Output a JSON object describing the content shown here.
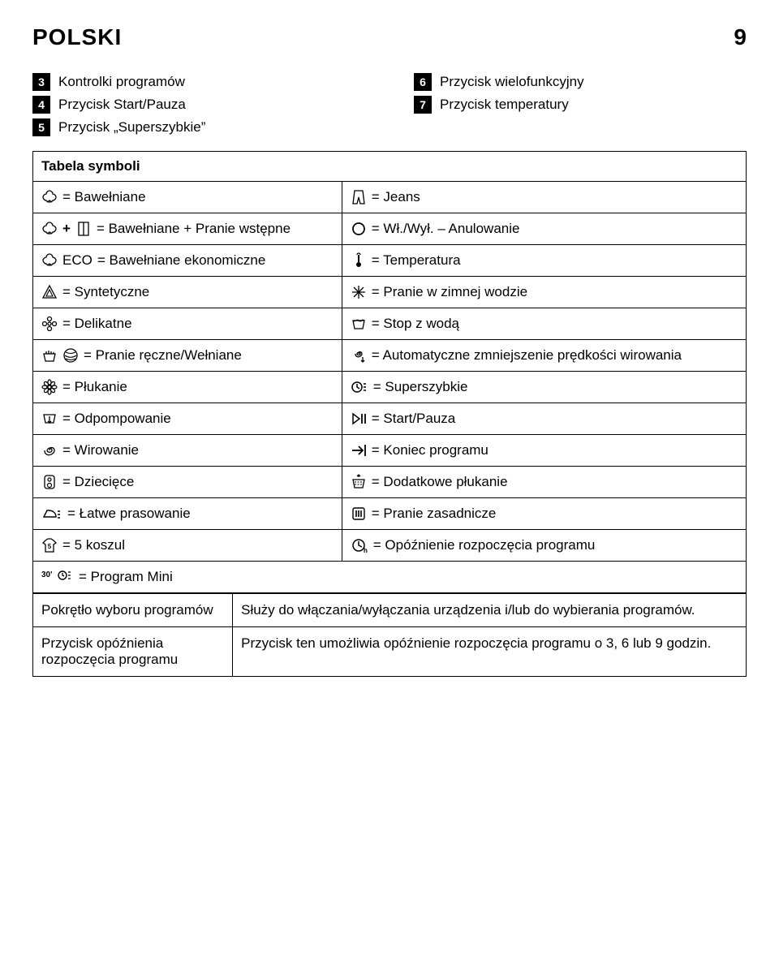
{
  "header": {
    "title": "POLSKI",
    "pagenum": "9"
  },
  "top": {
    "left": [
      {
        "num": "3",
        "label": "Kontrolki programów"
      },
      {
        "num": "4",
        "label": "Przycisk Start/Pauza"
      },
      {
        "num": "5",
        "label": "Przycisk „Superszybkie”"
      }
    ],
    "right": [
      {
        "num": "6",
        "label": "Przycisk wielofunkcyjny"
      },
      {
        "num": "7",
        "label": "Przycisk temperatury"
      }
    ]
  },
  "table_header": "Tabela symboli",
  "rows": [
    {
      "l": {
        "icons": [
          "cotton"
        ],
        "label": "= Bawełniane"
      },
      "r": {
        "icons": [
          "jeans"
        ],
        "label": "= Jeans"
      }
    },
    {
      "l": {
        "icons": [
          "cotton",
          "plus",
          "prewash"
        ],
        "label": "= Bawełniane + Pranie wstępne"
      },
      "r": {
        "icons": [
          "circle"
        ],
        "label": "= Wł./Wył. – Anulowanie"
      }
    },
    {
      "l": {
        "icons": [
          "cotton"
        ],
        "prefix": "ECO",
        "label": "= Bawełniane ekonomiczne"
      },
      "r": {
        "icons": [
          "thermo"
        ],
        "label": "= Temperatura"
      }
    },
    {
      "l": {
        "icons": [
          "triangle"
        ],
        "label": "= Syntetyczne"
      },
      "r": {
        "icons": [
          "snow"
        ],
        "label": "= Pranie w zimnej wodzie"
      }
    },
    {
      "l": {
        "icons": [
          "flower"
        ],
        "label": "= Delikatne"
      },
      "r": {
        "icons": [
          "tub"
        ],
        "label": "= Stop z wodą"
      }
    },
    {
      "l": {
        "icons": [
          "hand",
          "wool"
        ],
        "label": "= Pranie ręczne/Wełniane"
      },
      "r": {
        "icons": [
          "spiral-down"
        ],
        "label": "= Automatyczne zmniejszenie prędkości wirowania"
      }
    },
    {
      "l": {
        "icons": [
          "flower8"
        ],
        "label": "= Płukanie"
      },
      "r": {
        "icons": [
          "clock-lines"
        ],
        "label": "= Superszybkie"
      }
    },
    {
      "l": {
        "icons": [
          "pump"
        ],
        "label": "= Odpompowanie"
      },
      "r": {
        "icons": [
          "start-pause"
        ],
        "label": "= Start/Pauza"
      }
    },
    {
      "l": {
        "icons": [
          "spiral"
        ],
        "label": "= Wirowanie"
      },
      "r": {
        "icons": [
          "end"
        ],
        "label": "= Koniec programu"
      }
    },
    {
      "l": {
        "icons": [
          "baby"
        ],
        "label": "= Dziecięce"
      },
      "r": {
        "icons": [
          "extra-rinse"
        ],
        "label": "= Dodatkowe płukanie"
      }
    },
    {
      "l": {
        "icons": [
          "iron-lines"
        ],
        "label": "= Łatwe prasowanie"
      },
      "r": {
        "icons": [
          "prewash-main"
        ],
        "label": "= Pranie zasadnicze"
      }
    },
    {
      "l": {
        "icons": [
          "shirt5"
        ],
        "label": "= 5 koszul"
      },
      "r": {
        "icons": [
          "clock-h"
        ],
        "label": "= Opóźnienie rozpoczęcia programu"
      }
    },
    {
      "l": {
        "icons": [
          "mini30"
        ],
        "label": "= Program Mini"
      },
      "r": null
    }
  ],
  "desc": [
    {
      "term": "Pokrętło wyboru programów",
      "def": "Służy do włączania/wyłączania urządzenia i/lub do wybierania programów."
    },
    {
      "term": "Przycisk opóźnienia rozpoczęcia programu",
      "def": "Przycisk ten umożliwia opóźnienie rozpoczęcia programu o 3, 6 lub 9 godzin."
    }
  ]
}
